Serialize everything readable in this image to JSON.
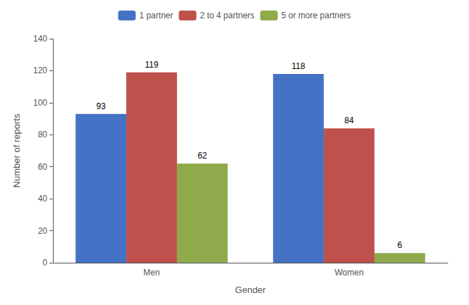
{
  "chart_data": {
    "type": "bar",
    "categories": [
      "Men",
      "Women"
    ],
    "series": [
      {
        "name": "1 partner",
        "color": "#4472C4",
        "values": [
          93,
          118
        ]
      },
      {
        "name": "2 to 4 partners",
        "color": "#BE514B",
        "values": [
          119,
          84
        ]
      },
      {
        "name": "5 or more partners",
        "color": "#8EAA4A",
        "values": [
          62,
          6
        ]
      }
    ],
    "xlabel": "Gender",
    "ylabel": "Number of reports",
    "ylim": [
      0,
      140
    ],
    "yticks": [
      0,
      20,
      40,
      60,
      80,
      100,
      120,
      140
    ],
    "grid": false,
    "legend": "top",
    "data_labels": true
  }
}
